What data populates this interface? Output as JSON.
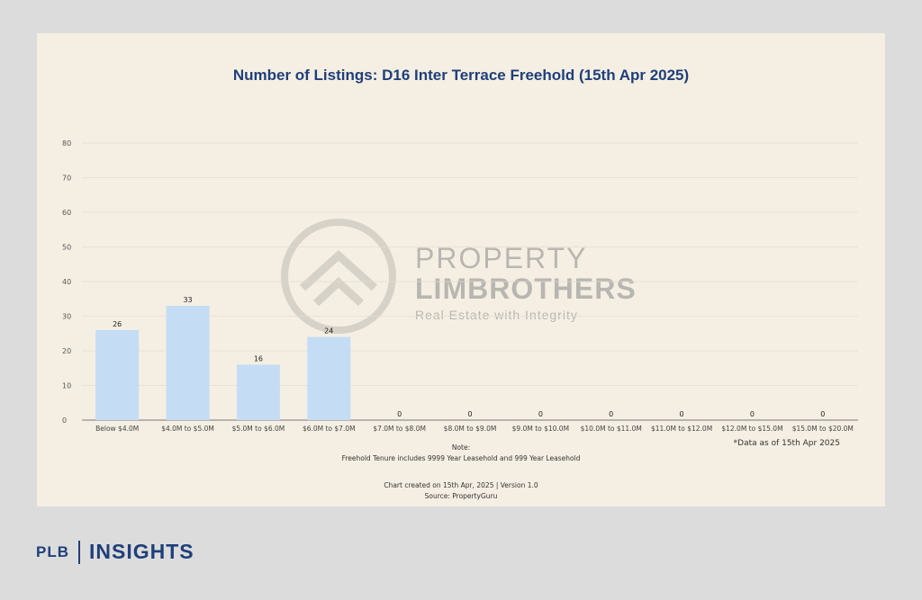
{
  "chart_data": {
    "type": "bar",
    "title": "Number of Listings: D16 Inter Terrace Freehold (15th Apr 2025)",
    "categories": [
      "Below $4.0M",
      "$4.0M to $5.0M",
      "$5.0M to $6.0M",
      "$6.0M to $7.0M",
      "$7.0M to $8.0M",
      "$8.0M to $9.0M",
      "$9.0M to $10.0M",
      "$10.0M to $11.0M",
      "$11.0M to $12.0M",
      "$12.0M to $15.0M",
      "$15.0M to $20.0M"
    ],
    "values": [
      26,
      33,
      16,
      24,
      0,
      0,
      0,
      0,
      0,
      0,
      0
    ],
    "yticks": [
      0,
      10,
      20,
      30,
      40,
      50,
      60,
      70,
      80
    ],
    "ylim": [
      0,
      80
    ],
    "grid": true,
    "bar_color": "#c5dcf5"
  },
  "notes": {
    "note_heading": "Note:",
    "note_body": "Freehold Tenure includes 9999 Year Leasehold and 999 Year Leasehold",
    "as_of": "*Data as of 15th Apr 2025",
    "created": "Chart created on 15th Apr, 2025 | Version 1.0",
    "source": "Source: PropertyGuru"
  },
  "watermark": {
    "line1": "PROPERTY",
    "line2": "LIMBROTHERS",
    "tagline": "Real Estate with Integrity"
  },
  "brand": {
    "plb": "PLB",
    "insights": "INSIGHTS"
  }
}
